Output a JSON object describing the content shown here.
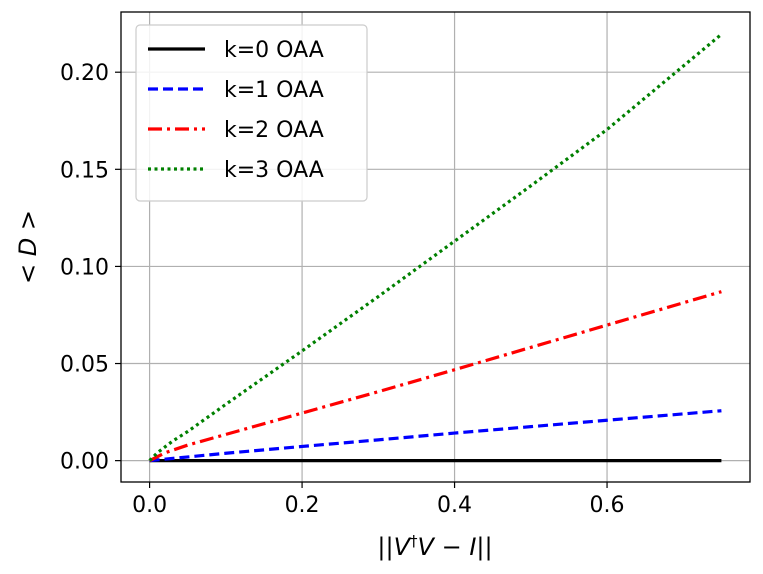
{
  "chart_data": {
    "type": "line",
    "title": "",
    "xlabel_html": "||V†V − I||",
    "xlabel_parts": [
      "||",
      "V",
      "†",
      "V",
      " − ",
      "I",
      "||"
    ],
    "ylabel_parts": [
      "< ",
      "D",
      " >"
    ],
    "xlim": [
      -0.0375,
      0.7875
    ],
    "ylim": [
      -0.011,
      0.231
    ],
    "xticks": [
      0.0,
      0.2,
      0.4,
      0.6
    ],
    "xtick_labels": [
      "0.0",
      "0.2",
      "0.4",
      "0.6"
    ],
    "yticks": [
      0.0,
      0.05,
      0.1,
      0.15,
      0.2
    ],
    "ytick_labels": [
      "0.00",
      "0.05",
      "0.10",
      "0.15",
      "0.20"
    ],
    "grid": true,
    "legend_position": "top-left",
    "series": [
      {
        "name": "k=0 OAA",
        "color": "#000000",
        "style": "solid",
        "x": [
          0.0,
          0.75
        ],
        "y": [
          0.0,
          0.0
        ]
      },
      {
        "name": "k=1 OAA",
        "color": "#0000ff",
        "style": "dashed",
        "x": [
          0.0,
          0.1,
          0.2,
          0.3,
          0.4,
          0.5,
          0.6,
          0.75
        ],
        "y": [
          0.0,
          0.0038,
          0.0073,
          0.0107,
          0.0142,
          0.0175,
          0.0208,
          0.0257
        ]
      },
      {
        "name": "k=2 OAA",
        "color": "#ff0000",
        "style": "dashdot",
        "x": [
          0.0,
          0.02,
          0.05,
          0.1,
          0.2,
          0.3,
          0.4,
          0.5,
          0.6,
          0.75
        ],
        "y": [
          0.0,
          0.004,
          0.008,
          0.0135,
          0.0245,
          0.0355,
          0.0468,
          0.0583,
          0.0698,
          0.087
        ]
      },
      {
        "name": "k=3 OAA",
        "color": "#008000",
        "style": "dotted",
        "x": [
          0.0,
          0.01,
          0.03,
          0.05,
          0.1,
          0.2,
          0.3,
          0.4,
          0.5,
          0.6,
          0.75
        ],
        "y": [
          0.0,
          0.004,
          0.01,
          0.015,
          0.029,
          0.0565,
          0.0845,
          0.113,
          0.1415,
          0.1705,
          0.2195
        ]
      }
    ]
  }
}
